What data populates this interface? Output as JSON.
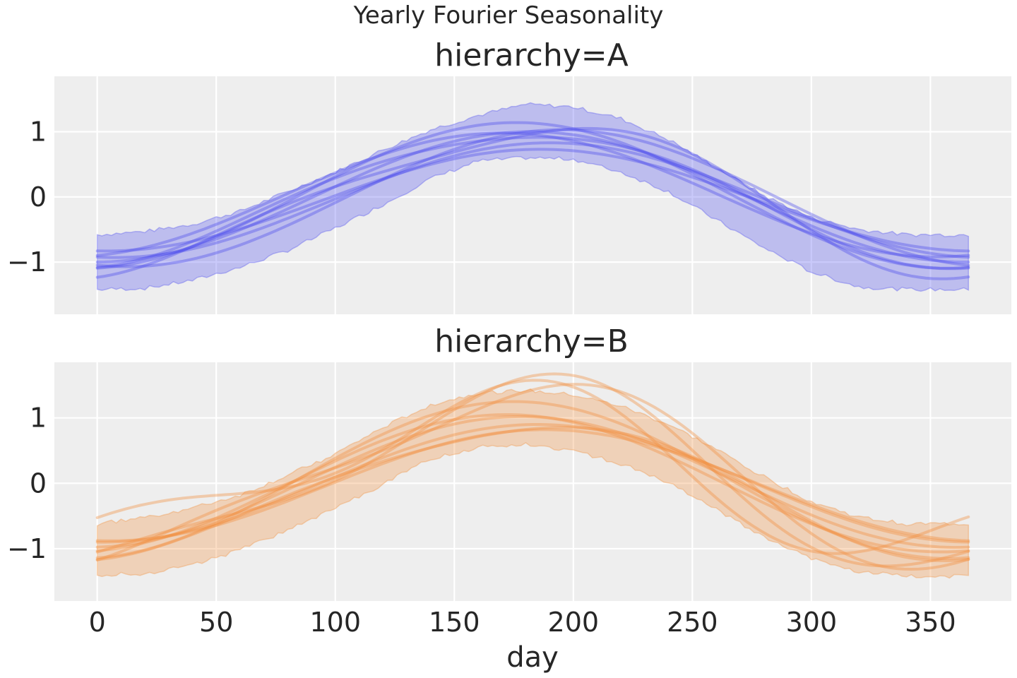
{
  "figure": {
    "suptitle": "Yearly Fourier Seasonality",
    "xlabel": "day",
    "background": "#eeeeee",
    "grid_color": "#ffffff"
  },
  "chart_data": [
    {
      "type": "line",
      "title": "hierarchy=A",
      "color": "#4c4ced",
      "xlabel": "",
      "ylabel": "",
      "xlim": [
        -18,
        384
      ],
      "ylim": [
        -1.8,
        1.85
      ],
      "xticks": [
        0,
        50,
        100,
        150,
        200,
        250,
        300,
        350
      ],
      "yticks": [
        -1,
        0,
        1
      ],
      "ytick_labels": [
        "−1",
        "0",
        "1"
      ],
      "grid": true,
      "show_xtick_labels": false,
      "band": {
        "x": [
          0,
          20,
          40,
          60,
          80,
          100,
          120,
          140,
          160,
          180,
          200,
          220,
          240,
          260,
          280,
          300,
          320,
          340,
          366
        ],
        "upper": [
          -0.58,
          -0.53,
          -0.42,
          -0.22,
          0.08,
          0.38,
          0.72,
          1.03,
          1.25,
          1.42,
          1.38,
          1.2,
          0.88,
          0.45,
          0.02,
          -0.32,
          -0.5,
          -0.58,
          -0.58
        ],
        "lower": [
          -1.42,
          -1.4,
          -1.28,
          -1.08,
          -0.82,
          -0.48,
          -0.12,
          0.28,
          0.55,
          0.6,
          0.58,
          0.38,
          0.08,
          -0.35,
          -0.78,
          -1.15,
          -1.38,
          -1.42,
          -1.42
        ]
      },
      "series": [
        {
          "amp": 1.0,
          "peak": 182,
          "offset": 0.0,
          "h2": 0.0,
          "phase2": 0
        },
        {
          "amp": 1.12,
          "peak": 176,
          "offset": 0.02,
          "h2": 0.0,
          "phase2": 0
        },
        {
          "amp": 0.88,
          "peak": 190,
          "offset": -0.05,
          "h2": 0.0,
          "phase2": 0
        },
        {
          "amp": 0.95,
          "peak": 170,
          "offset": 0.03,
          "h2": 0.0,
          "phase2": 0
        },
        {
          "amp": 1.05,
          "peak": 195,
          "offset": -0.02,
          "h2": 0.0,
          "phase2": 0
        },
        {
          "amp": 0.78,
          "peak": 186,
          "offset": -0.05,
          "h2": 0.0,
          "phase2": 0
        },
        {
          "amp": 1.1,
          "peak": 185,
          "offset": -0.02,
          "h2": 0.2,
          "phase2": 200
        },
        {
          "amp": 1.0,
          "peak": 178,
          "offset": 0.0,
          "h2": -0.1,
          "phase2": 120
        }
      ]
    },
    {
      "type": "line",
      "title": "hierarchy=B",
      "color": "#f28e3c",
      "xlabel": "day",
      "ylabel": "",
      "xlim": [
        -18,
        384
      ],
      "ylim": [
        -1.8,
        1.85
      ],
      "xticks": [
        0,
        50,
        100,
        150,
        200,
        250,
        300,
        350
      ],
      "xtick_labels": [
        "0",
        "50",
        "100",
        "150",
        "200",
        "250",
        "300",
        "350"
      ],
      "yticks": [
        -1,
        0,
        1
      ],
      "ytick_labels": [
        "−1",
        "0",
        "1"
      ],
      "grid": true,
      "show_xtick_labels": true,
      "band": {
        "x": [
          0,
          20,
          40,
          60,
          80,
          100,
          120,
          140,
          160,
          180,
          200,
          220,
          240,
          260,
          280,
          300,
          320,
          340,
          366
        ],
        "upper": [
          -0.62,
          -0.52,
          -0.38,
          -0.18,
          0.12,
          0.45,
          0.85,
          1.2,
          1.38,
          1.42,
          1.35,
          1.18,
          0.9,
          0.52,
          0.1,
          -0.28,
          -0.52,
          -0.62,
          -0.62
        ],
        "lower": [
          -1.4,
          -1.38,
          -1.25,
          -1.02,
          -0.72,
          -0.38,
          -0.02,
          0.38,
          0.55,
          0.6,
          0.5,
          0.3,
          0.0,
          -0.4,
          -0.82,
          -1.15,
          -1.35,
          -1.42,
          -1.42
        ]
      },
      "series": [
        {
          "amp": 0.9,
          "peak": 185,
          "offset": 0.0,
          "h2": 0.0,
          "phase2": 0
        },
        {
          "amp": 1.0,
          "peak": 178,
          "offset": 0.02,
          "h2": 0.0,
          "phase2": 0
        },
        {
          "amp": 1.2,
          "peak": 175,
          "offset": 0.05,
          "h2": 0.0,
          "phase2": 0
        },
        {
          "amp": 0.85,
          "peak": 188,
          "offset": -0.03,
          "h2": 0.0,
          "phase2": 0
        },
        {
          "amp": 1.05,
          "peak": 172,
          "offset": 0.0,
          "h2": 0.0,
          "phase2": 0
        },
        {
          "amp": 1.3,
          "peak": 180,
          "offset": 0.1,
          "h2": 0.3,
          "phase2": 180
        },
        {
          "amp": 1.1,
          "peak": 165,
          "offset": 0.12,
          "h2": 0.45,
          "phase2": 150
        },
        {
          "amp": 1.35,
          "peak": 178,
          "offset": 0.05,
          "h2": 0.35,
          "phase2": 160
        },
        {
          "amp": 1.0,
          "peak": 182,
          "offset": -0.1,
          "h2": 0.12,
          "phase2": 200
        }
      ]
    }
  ]
}
